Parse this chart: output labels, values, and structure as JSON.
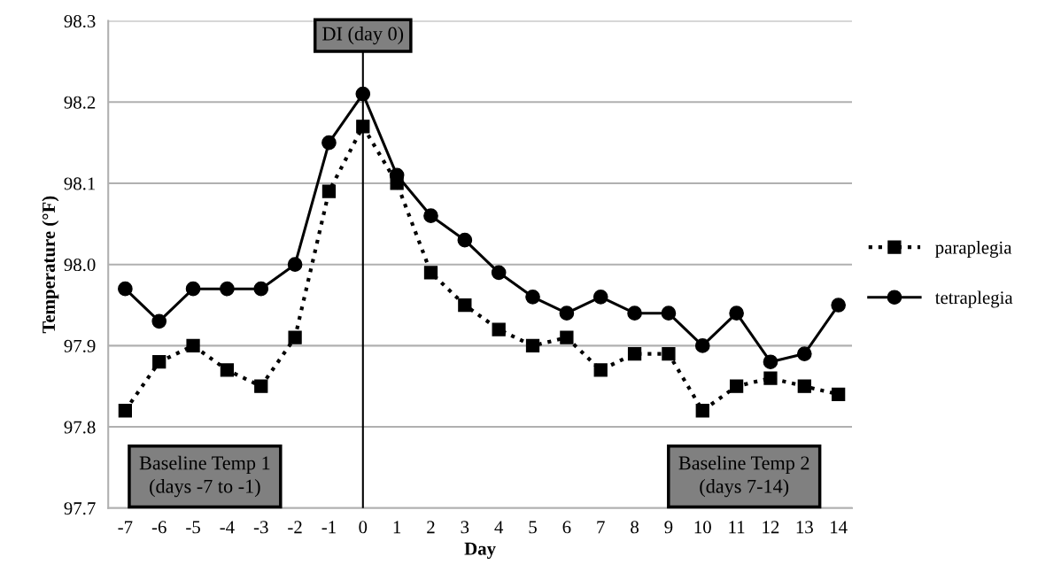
{
  "chart_data": {
    "type": "line",
    "xlabel": "Day",
    "ylabel": "Temperature (°F)",
    "x": [
      -7,
      -6,
      -5,
      -4,
      -3,
      -2,
      -1,
      0,
      1,
      2,
      3,
      4,
      5,
      6,
      7,
      8,
      9,
      10,
      11,
      12,
      13,
      14
    ],
    "series": [
      {
        "name": "paraplegia",
        "color": "#000000",
        "marker": "square",
        "line_style": "dotted",
        "values": [
          97.82,
          97.88,
          97.9,
          97.87,
          97.85,
          97.91,
          98.09,
          98.17,
          98.1,
          97.99,
          97.95,
          97.92,
          97.9,
          97.91,
          97.87,
          97.89,
          97.89,
          97.82,
          97.85,
          97.86,
          97.85,
          97.84
        ]
      },
      {
        "name": "tetraplegia",
        "color": "#000000",
        "marker": "circle",
        "line_style": "solid",
        "values": [
          97.97,
          97.93,
          97.97,
          97.97,
          97.97,
          98.0,
          98.15,
          98.21,
          98.11,
          98.06,
          98.03,
          97.99,
          97.96,
          97.94,
          97.96,
          97.94,
          97.94,
          97.9,
          97.94,
          97.88,
          97.89,
          97.95
        ]
      }
    ],
    "xlim": [
      -7.5,
      14.4
    ],
    "xticks": [
      -7,
      -6,
      -5,
      -4,
      -3,
      -2,
      -1,
      0,
      1,
      2,
      3,
      4,
      5,
      6,
      7,
      8,
      9,
      10,
      11,
      12,
      13,
      14
    ],
    "ylim": [
      97.7,
      98.3
    ],
    "yticks": [
      {
        "value": 97.7,
        "label": "97.7"
      },
      {
        "value": 97.8,
        "label": "97.8"
      },
      {
        "value": 97.9,
        "label": "97.9"
      },
      {
        "value": 98.0,
        "label": "98.0"
      },
      {
        "value": 98.1,
        "label": "98.1"
      },
      {
        "value": 98.2,
        "label": "98.2"
      },
      {
        "value": 98.3,
        "label": "98.3"
      }
    ],
    "ref_lines": [
      {
        "axis": "x",
        "value": 0,
        "label": "DI (day 0)",
        "color": "#000000",
        "line_style": "solid"
      }
    ],
    "annotations": [
      "Baseline Temp 1\n(days -7 to -1)",
      "Baseline Temp 2\n(days 7-14)"
    ],
    "grid": "y",
    "legend": "right"
  }
}
